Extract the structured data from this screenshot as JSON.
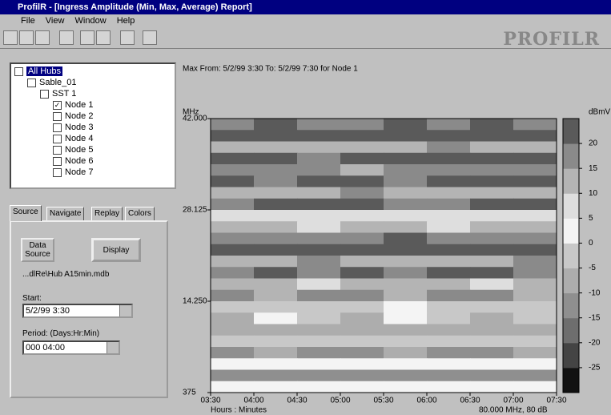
{
  "window": {
    "title": "ProfilR - [Ingress Amplitude (Min, Max, Average) Report]",
    "menu": [
      "File",
      "View",
      "Window",
      "Help"
    ],
    "logo": "PROFILR"
  },
  "tree": {
    "nodes": [
      {
        "label": "All Hubs"
      },
      {
        "label": "Sable_01"
      },
      {
        "label": "SST 1"
      },
      {
        "label": "Node 1",
        "checked": true
      },
      {
        "label": "Node 2"
      },
      {
        "label": "Node 3"
      },
      {
        "label": "Node 4"
      },
      {
        "label": "Node 5"
      },
      {
        "label": "Node 6"
      },
      {
        "label": "Node 7"
      }
    ]
  },
  "tabs": [
    "Source",
    "Navigate",
    "Replay",
    "Colors"
  ],
  "source_panel": {
    "data_source_button": "Data Source",
    "display_button": "Display",
    "file": "...dlRe\\Hub A15min.mdb",
    "start_label": "Start:",
    "start_value": "5/2/99 3:30",
    "period_label": "Period: (Days:Hr:Min)",
    "period_value": "000 04:00"
  },
  "chart_data": {
    "type": "heatmap",
    "title": "Max  From: 5/2/99 3:30 To: 5/2/99 7:30 for Node 1",
    "y_label": "MHz",
    "x_label": "Hours : Minutes",
    "colorbar_label": "dBmV",
    "footer": "80.000 MHz, 80 dB",
    "ylim": [
      0.375,
      42
    ],
    "yticks": [
      {
        "value": 42,
        "label": "42.000"
      },
      28.125,
      {
        "value": 14.25,
        "label": "14.250"
      },
      {
        "value": 0.375,
        "label": "375"
      }
    ],
    "x_ticks": [
      "03:30",
      "04:00",
      "04:30",
      "05:00",
      "05:30",
      "06:00",
      "06:30",
      "07:00",
      "07:30"
    ],
    "clim": [
      -30,
      25
    ],
    "colorbar_ticks": [
      20,
      15,
      10,
      5,
      0,
      -5,
      -10,
      -15,
      -20,
      -25
    ],
    "colorscale": [
      "#111111",
      "#444444",
      "#6e6e6e",
      "#8f8f8f",
      "#adadad",
      "#c8c8c8",
      "#f4f4f4",
      "#dedede",
      "#b4b4b4",
      "#8a8a8a",
      "#5a5a5a"
    ],
    "z": [
      [
        18,
        20,
        17,
        19,
        21,
        18,
        20,
        19
      ],
      [
        22,
        21,
        23,
        20,
        22,
        21,
        22,
        23
      ],
      [
        12,
        14,
        11,
        13,
        12,
        15,
        13,
        12
      ],
      [
        20,
        22,
        19,
        21,
        23,
        20,
        22,
        21
      ],
      [
        16,
        15,
        17,
        14,
        16,
        18,
        15,
        16
      ],
      [
        21,
        19,
        22,
        20,
        18,
        21,
        23,
        20
      ],
      [
        13,
        12,
        14,
        16,
        12,
        13,
        11,
        14
      ],
      [
        19,
        21,
        20,
        22,
        19,
        18,
        21,
        20
      ],
      [
        8,
        6,
        9,
        7,
        5,
        8,
        6,
        9
      ],
      [
        11,
        13,
        7,
        10,
        12,
        9,
        11,
        13
      ],
      [
        17,
        19,
        18,
        16,
        20,
        17,
        19,
        18
      ],
      [
        22,
        24,
        21,
        23,
        22,
        24,
        23,
        21
      ],
      [
        14,
        12,
        15,
        13,
        11,
        14,
        12,
        15
      ],
      [
        19,
        20,
        18,
        21,
        19,
        22,
        20,
        18
      ],
      [
        10,
        12,
        9,
        11,
        13,
        10,
        8,
        12
      ],
      [
        16,
        14,
        17,
        15,
        13,
        16,
        18,
        14
      ],
      [
        -3,
        -1,
        -4,
        -2,
        0,
        -3,
        -1,
        -2
      ],
      [
        -6,
        2,
        -5,
        -7,
        3,
        -4,
        -6,
        -5
      ],
      [
        -8,
        -7,
        -9,
        -6,
        -8,
        -10,
        -7,
        -9
      ],
      [
        -4,
        -2,
        -5,
        -3,
        -1,
        -4,
        -2,
        -3
      ],
      [
        -12,
        -10,
        -11,
        -13,
        -9,
        -12,
        -11,
        -10
      ],
      [
        2,
        1,
        3,
        0,
        2,
        4,
        1,
        2
      ],
      [
        -14,
        -12,
        -15,
        -11,
        -13,
        -12,
        -14,
        -13
      ],
      [
        3,
        1,
        4,
        2,
        0,
        3,
        2,
        4
      ]
    ]
  }
}
